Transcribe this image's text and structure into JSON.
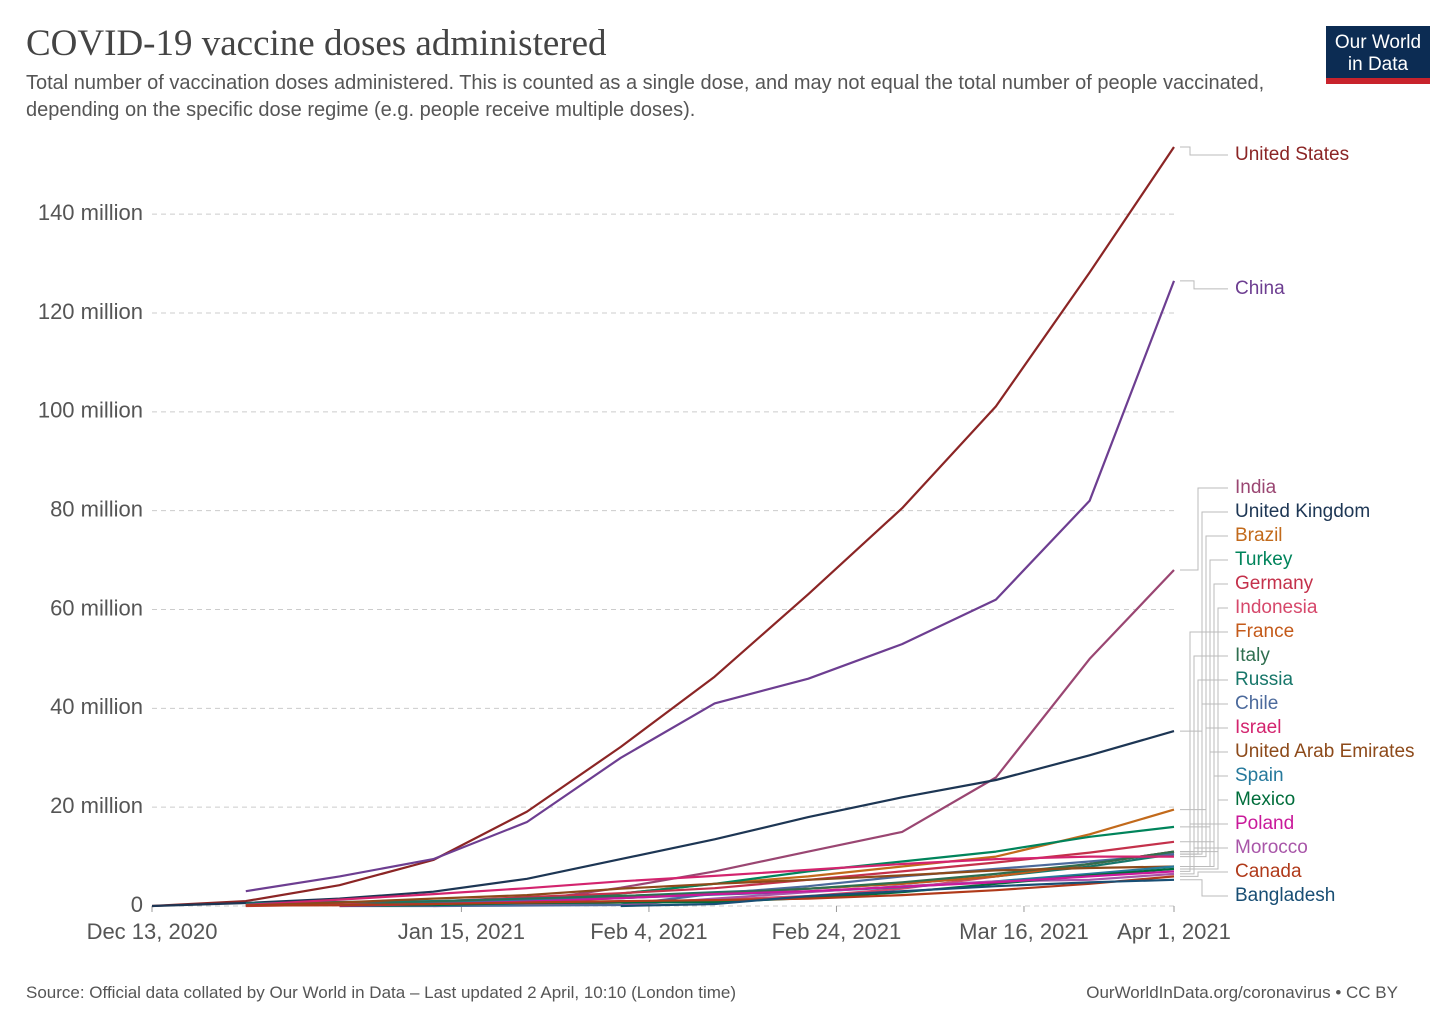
{
  "brand": "Our World in Data",
  "chart_data": {
    "type": "line",
    "title": "COVID-19 vaccine doses administered",
    "subtitle": "Total number of vaccination doses administered. This is counted as a single dose, and may not equal the total number of people vaccinated, depending on the specific dose regime (e.g. people receive multiple doses).",
    "source": "Source: Official data collated by Our World in Data – Last updated 2 April, 10:10 (London time)",
    "credit": "OurWorldInData.org/coronavirus • CC BY",
    "grid": true,
    "x": [
      "Dec 13, 2020",
      "Dec 23, 2020",
      "Jan 2, 2021",
      "Jan 12, 2021",
      "Jan 22, 2021",
      "Feb 1, 2021",
      "Feb 11, 2021",
      "Feb 21, 2021",
      "Mar 3, 2021",
      "Mar 13, 2021",
      "Mar 23, 2021",
      "Apr 1, 2021"
    ],
    "xlim": [
      "Dec 13, 2020",
      "Apr 1, 2021"
    ],
    "xticks": [
      "Dec 13, 2020",
      "Jan 15, 2021",
      "Feb 4, 2021",
      "Feb 24, 2021",
      "Mar 16, 2021",
      "Apr 1, 2021"
    ],
    "ylim": [
      0,
      154000000
    ],
    "yticks": [
      0,
      {
        "value": 20000000,
        "label": "20 million"
      },
      {
        "value": 40000000,
        "label": "40 million"
      },
      {
        "value": 60000000,
        "label": "60 million"
      },
      {
        "value": 80000000,
        "label": "80 million"
      },
      {
        "value": 100000000,
        "label": "100 million"
      },
      {
        "value": 120000000,
        "label": "120 million"
      },
      {
        "value": 140000000,
        "label": "140 million"
      }
    ],
    "series": [
      {
        "name": "United States",
        "color": "#8b2525",
        "values": [
          0,
          1000000,
          4200000,
          9300000,
          19100000,
          32200000,
          46400000,
          63100000,
          80500000,
          101100000,
          128200000,
          153600000
        ]
      },
      {
        "name": "China",
        "color": "#6d3e91",
        "values": [
          null,
          3000000,
          6000000,
          9500000,
          17000000,
          30000000,
          41000000,
          46000000,
          53000000,
          62000000,
          82000000,
          126500000
        ]
      },
      {
        "name": "India",
        "color": "#9a4672",
        "values": [
          null,
          null,
          null,
          null,
          1000000,
          3700000,
          7000000,
          11000000,
          15000000,
          26000000,
          50000000,
          68000000
        ]
      },
      {
        "name": "United Kingdom",
        "color": "#1d3654",
        "values": [
          0,
          600000,
          1500000,
          2900000,
          5500000,
          9500000,
          13500000,
          18000000,
          22000000,
          25500000,
          30500000,
          35400000
        ]
      },
      {
        "name": "Brazil",
        "color": "#c26a1b",
        "values": [
          null,
          null,
          null,
          null,
          500000,
          2500000,
          4500000,
          6000000,
          8000000,
          10000000,
          14500000,
          19500000
        ]
      },
      {
        "name": "Turkey",
        "color": "#00845b",
        "values": [
          null,
          null,
          null,
          500000,
          1300000,
          2500000,
          4500000,
          7000000,
          9000000,
          11000000,
          14000000,
          16000000
        ]
      },
      {
        "name": "Germany",
        "color": "#c4314b",
        "values": [
          null,
          0,
          300000,
          900000,
          1800000,
          2600000,
          3600000,
          5300000,
          7000000,
          8800000,
          10800000,
          13000000
        ]
      },
      {
        "name": "Indonesia",
        "color": "#d6486b",
        "values": [
          null,
          null,
          null,
          0,
          300000,
          700000,
          1300000,
          2000000,
          3500000,
          6000000,
          8500000,
          11000000
        ]
      },
      {
        "name": "Russia",
        "color": "#18776a",
        "values": [
          null,
          500000,
          800000,
          1000000,
          1500000,
          2000000,
          2800000,
          3500000,
          4500000,
          6000000,
          8000000,
          10500000
        ]
      },
      {
        "name": "France",
        "color": "#c45a1a",
        "values": [
          null,
          null,
          0,
          200000,
          900000,
          1600000,
          2500000,
          3500000,
          4500000,
          6000000,
          8500000,
          11000000
        ]
      },
      {
        "name": "Chile",
        "color": "#4c6a9c",
        "values": [
          null,
          null,
          0,
          0,
          100000,
          200000,
          2500000,
          4000000,
          6000000,
          7500000,
          9000000,
          10500000
        ]
      },
      {
        "name": "Italy",
        "color": "#2f6e4f",
        "values": [
          null,
          null,
          100000,
          800000,
          1300000,
          2000000,
          2600000,
          3500000,
          4800000,
          6500000,
          8500000,
          11000000
        ]
      },
      {
        "name": "Israel",
        "color": "#d3246e",
        "values": [
          null,
          200000,
          1300000,
          2400000,
          3600000,
          5000000,
          6100000,
          7300000,
          8500000,
          9500000,
          10000000,
          10000000
        ]
      },
      {
        "name": "United Arab Emirates",
        "color": "#8d4a1a",
        "values": [
          null,
          100000,
          700000,
          1500000,
          2200000,
          3500000,
          4500000,
          5300000,
          6200000,
          7200000,
          7700000,
          8000000
        ]
      },
      {
        "name": "Spain",
        "color": "#26799c",
        "values": [
          null,
          null,
          50000,
          500000,
          1100000,
          1600000,
          2300000,
          2900000,
          3800000,
          5000000,
          6500000,
          8000000
        ]
      },
      {
        "name": "Morocco",
        "color": "#a855a8",
        "values": [
          null,
          null,
          null,
          null,
          null,
          100000,
          1500000,
          2800000,
          4000000,
          5000000,
          5300000,
          6500000
        ]
      },
      {
        "name": "Mexico",
        "color": "#006d3b",
        "values": [
          null,
          null,
          20000,
          200000,
          600000,
          700000,
          800000,
          1600000,
          2800000,
          4500000,
          6200000,
          7500000
        ]
      },
      {
        "name": "Poland",
        "color": "#c9199a",
        "values": [
          null,
          null,
          50000,
          400000,
          900000,
          1600000,
          2400000,
          3000000,
          3900000,
          4800000,
          6000000,
          7000000
        ]
      },
      {
        "name": "Canada",
        "color": "#b03a1a",
        "values": [
          null,
          100000,
          150000,
          400000,
          700000,
          1000000,
          1200000,
          1500000,
          2200000,
          3200000,
          4500000,
          6000000
        ]
      },
      {
        "name": "Bangladesh",
        "color": "#184e74",
        "values": [
          null,
          null,
          null,
          null,
          null,
          0,
          400000,
          2000000,
          3000000,
          4000000,
          4800000,
          5300000
        ]
      }
    ]
  }
}
